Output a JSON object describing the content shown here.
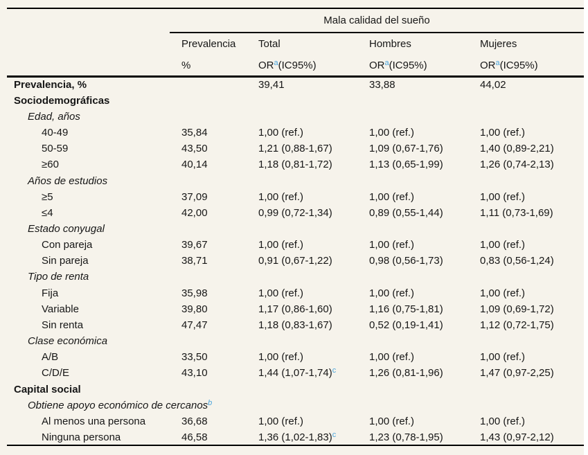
{
  "colors": {
    "background": "#f6f3eb",
    "text": "#161616",
    "rule": "#000000",
    "footnote_blue": "#4ba5dc",
    "outside_strip": "#ffffff"
  },
  "table": {
    "spanner": "Mala calidad del sueño",
    "columns": [
      {
        "title": "Prevalencia",
        "sub_pre": "%",
        "sub_sup": "",
        "sub_post": ""
      },
      {
        "title": "Total",
        "sub_pre": "OR",
        "sub_sup": "a",
        "sub_post": "(IC95%)"
      },
      {
        "title": "Hombres",
        "sub_pre": "OR",
        "sub_sup": "a",
        "sub_post": "(IC95%)"
      },
      {
        "title": "Mujeres",
        "sub_pre": "OR",
        "sub_sup": "a",
        "sub_post": "(IC95%)"
      }
    ],
    "rows": [
      {
        "label": "Prevalencia, %",
        "sup": "",
        "style": "bold",
        "indent": 0,
        "cells": [
          {
            "text": "",
            "sup": ""
          },
          {
            "text": "39,41",
            "sup": ""
          },
          {
            "text": "33,88",
            "sup": ""
          },
          {
            "text": "44,02",
            "sup": ""
          }
        ]
      },
      {
        "label": "Sociodemográficas",
        "sup": "",
        "style": "bold",
        "indent": 0,
        "cells": [
          {
            "text": "",
            "sup": ""
          },
          {
            "text": "",
            "sup": ""
          },
          {
            "text": "",
            "sup": ""
          },
          {
            "text": "",
            "sup": ""
          }
        ]
      },
      {
        "label": "Edad, años",
        "sup": "",
        "style": "italic",
        "indent": 1,
        "cells": [
          {
            "text": "",
            "sup": ""
          },
          {
            "text": "",
            "sup": ""
          },
          {
            "text": "",
            "sup": ""
          },
          {
            "text": "",
            "sup": ""
          }
        ]
      },
      {
        "label": "40-49",
        "sup": "",
        "style": "plain",
        "indent": 2,
        "cells": [
          {
            "text": "35,84",
            "sup": ""
          },
          {
            "text": "1,00 (ref.)",
            "sup": ""
          },
          {
            "text": "1,00 (ref.)",
            "sup": ""
          },
          {
            "text": "1,00 (ref.)",
            "sup": ""
          }
        ]
      },
      {
        "label": "50-59",
        "sup": "",
        "style": "plain",
        "indent": 2,
        "cells": [
          {
            "text": "43,50",
            "sup": ""
          },
          {
            "text": "1,21 (0,88-1,67)",
            "sup": ""
          },
          {
            "text": "1,09 (0,67-1,76)",
            "sup": ""
          },
          {
            "text": "1,40 (0,89-2,21)",
            "sup": ""
          }
        ]
      },
      {
        "label": "≥60",
        "sup": "",
        "style": "plain",
        "indent": 2,
        "cells": [
          {
            "text": "40,14",
            "sup": ""
          },
          {
            "text": "1,18 (0,81-1,72)",
            "sup": ""
          },
          {
            "text": "1,13 (0,65-1,99)",
            "sup": ""
          },
          {
            "text": "1,26 (0,74-2,13)",
            "sup": ""
          }
        ]
      },
      {
        "label": "Años de estudios",
        "sup": "",
        "style": "italic",
        "indent": 1,
        "cells": [
          {
            "text": "",
            "sup": ""
          },
          {
            "text": "",
            "sup": ""
          },
          {
            "text": "",
            "sup": ""
          },
          {
            "text": "",
            "sup": ""
          }
        ]
      },
      {
        "label": "≥5",
        "sup": "",
        "style": "plain",
        "indent": 2,
        "cells": [
          {
            "text": "37,09",
            "sup": ""
          },
          {
            "text": "1,00 (ref.)",
            "sup": ""
          },
          {
            "text": "1,00 (ref.)",
            "sup": ""
          },
          {
            "text": "1,00 (ref.)",
            "sup": ""
          }
        ]
      },
      {
        "label": "≤4",
        "sup": "",
        "style": "plain",
        "indent": 2,
        "cells": [
          {
            "text": "42,00",
            "sup": ""
          },
          {
            "text": "0,99 (0,72-1,34)",
            "sup": ""
          },
          {
            "text": "0,89 (0,55-1,44)",
            "sup": ""
          },
          {
            "text": "1,11 (0,73-1,69)",
            "sup": ""
          }
        ]
      },
      {
        "label": "Estado conyugal",
        "sup": "",
        "style": "italic",
        "indent": 1,
        "cells": [
          {
            "text": "",
            "sup": ""
          },
          {
            "text": "",
            "sup": ""
          },
          {
            "text": "",
            "sup": ""
          },
          {
            "text": "",
            "sup": ""
          }
        ]
      },
      {
        "label": "Con pareja",
        "sup": "",
        "style": "plain",
        "indent": 2,
        "cells": [
          {
            "text": "39,67",
            "sup": ""
          },
          {
            "text": "1,00 (ref.)",
            "sup": ""
          },
          {
            "text": "1,00 (ref.)",
            "sup": ""
          },
          {
            "text": "1,00 (ref.)",
            "sup": ""
          }
        ]
      },
      {
        "label": "Sin pareja",
        "sup": "",
        "style": "plain",
        "indent": 2,
        "cells": [
          {
            "text": "38,71",
            "sup": ""
          },
          {
            "text": "0,91 (0,67-1,22)",
            "sup": ""
          },
          {
            "text": "0,98 (0,56-1,73)",
            "sup": ""
          },
          {
            "text": "0,83 (0,56-1,24)",
            "sup": ""
          }
        ]
      },
      {
        "label": "Tipo de renta",
        "sup": "",
        "style": "italic",
        "indent": 1,
        "cells": [
          {
            "text": "",
            "sup": ""
          },
          {
            "text": "",
            "sup": ""
          },
          {
            "text": "",
            "sup": ""
          },
          {
            "text": "",
            "sup": ""
          }
        ]
      },
      {
        "label": "Fija",
        "sup": "",
        "style": "plain",
        "indent": 2,
        "cells": [
          {
            "text": "35,98",
            "sup": ""
          },
          {
            "text": "1,00 (ref.)",
            "sup": ""
          },
          {
            "text": "1,00 (ref.)",
            "sup": ""
          },
          {
            "text": "1,00 (ref.)",
            "sup": ""
          }
        ]
      },
      {
        "label": "Variable",
        "sup": "",
        "style": "plain",
        "indent": 2,
        "cells": [
          {
            "text": "39,80",
            "sup": ""
          },
          {
            "text": "1,17 (0,86-1,60)",
            "sup": ""
          },
          {
            "text": "1,16 (0,75-1,81)",
            "sup": ""
          },
          {
            "text": "1,09 (0,69-1,72)",
            "sup": ""
          }
        ]
      },
      {
        "label": "Sin renta",
        "sup": "",
        "style": "plain",
        "indent": 2,
        "cells": [
          {
            "text": "47,47",
            "sup": ""
          },
          {
            "text": "1,18 (0,83-1,67)",
            "sup": ""
          },
          {
            "text": "0,52 (0,19-1,41)",
            "sup": ""
          },
          {
            "text": "1,12 (0,72-1,75)",
            "sup": ""
          }
        ]
      },
      {
        "label": "Clase económica",
        "sup": "",
        "style": "italic",
        "indent": 1,
        "cells": [
          {
            "text": "",
            "sup": ""
          },
          {
            "text": "",
            "sup": ""
          },
          {
            "text": "",
            "sup": ""
          },
          {
            "text": "",
            "sup": ""
          }
        ]
      },
      {
        "label": "A/B",
        "sup": "",
        "style": "plain",
        "indent": 2,
        "cells": [
          {
            "text": "33,50",
            "sup": ""
          },
          {
            "text": "1,00 (ref.)",
            "sup": ""
          },
          {
            "text": "1,00 (ref.)",
            "sup": ""
          },
          {
            "text": "1,00 (ref.)",
            "sup": ""
          }
        ]
      },
      {
        "label": "C/D/E",
        "sup": "",
        "style": "plain",
        "indent": 2,
        "cells": [
          {
            "text": "43,10",
            "sup": ""
          },
          {
            "text": "1,44 (1,07-1,74)",
            "sup": "c"
          },
          {
            "text": "1,26 (0,81-1,96)",
            "sup": ""
          },
          {
            "text": "1,47 (0,97-2,25)",
            "sup": ""
          }
        ]
      },
      {
        "label": "Capital social",
        "sup": "",
        "style": "bold",
        "indent": 0,
        "cells": [
          {
            "text": "",
            "sup": ""
          },
          {
            "text": "",
            "sup": ""
          },
          {
            "text": "",
            "sup": ""
          },
          {
            "text": "",
            "sup": ""
          }
        ]
      },
      {
        "label": "Obtiene apoyo económico de cercanos",
        "sup": "b",
        "style": "italic",
        "indent": 1,
        "cells": [
          {
            "text": "",
            "sup": ""
          },
          {
            "text": "",
            "sup": ""
          },
          {
            "text": "",
            "sup": ""
          },
          {
            "text": "",
            "sup": ""
          }
        ]
      },
      {
        "label": "Al menos una persona",
        "sup": "",
        "style": "plain",
        "indent": 2,
        "cells": [
          {
            "text": "36,68",
            "sup": ""
          },
          {
            "text": "1,00 (ref.)",
            "sup": ""
          },
          {
            "text": "1,00 (ref.)",
            "sup": ""
          },
          {
            "text": "1,00 (ref.)",
            "sup": ""
          }
        ]
      },
      {
        "label": "Ninguna persona",
        "sup": "",
        "style": "plain",
        "indent": 2,
        "cells": [
          {
            "text": "46,58",
            "sup": ""
          },
          {
            "text": "1,36 (1,02-1,83)",
            "sup": "c"
          },
          {
            "text": "1,23 (0,78-1,95)",
            "sup": ""
          },
          {
            "text": "1,43 (0,97-2,12)",
            "sup": ""
          }
        ]
      }
    ]
  }
}
